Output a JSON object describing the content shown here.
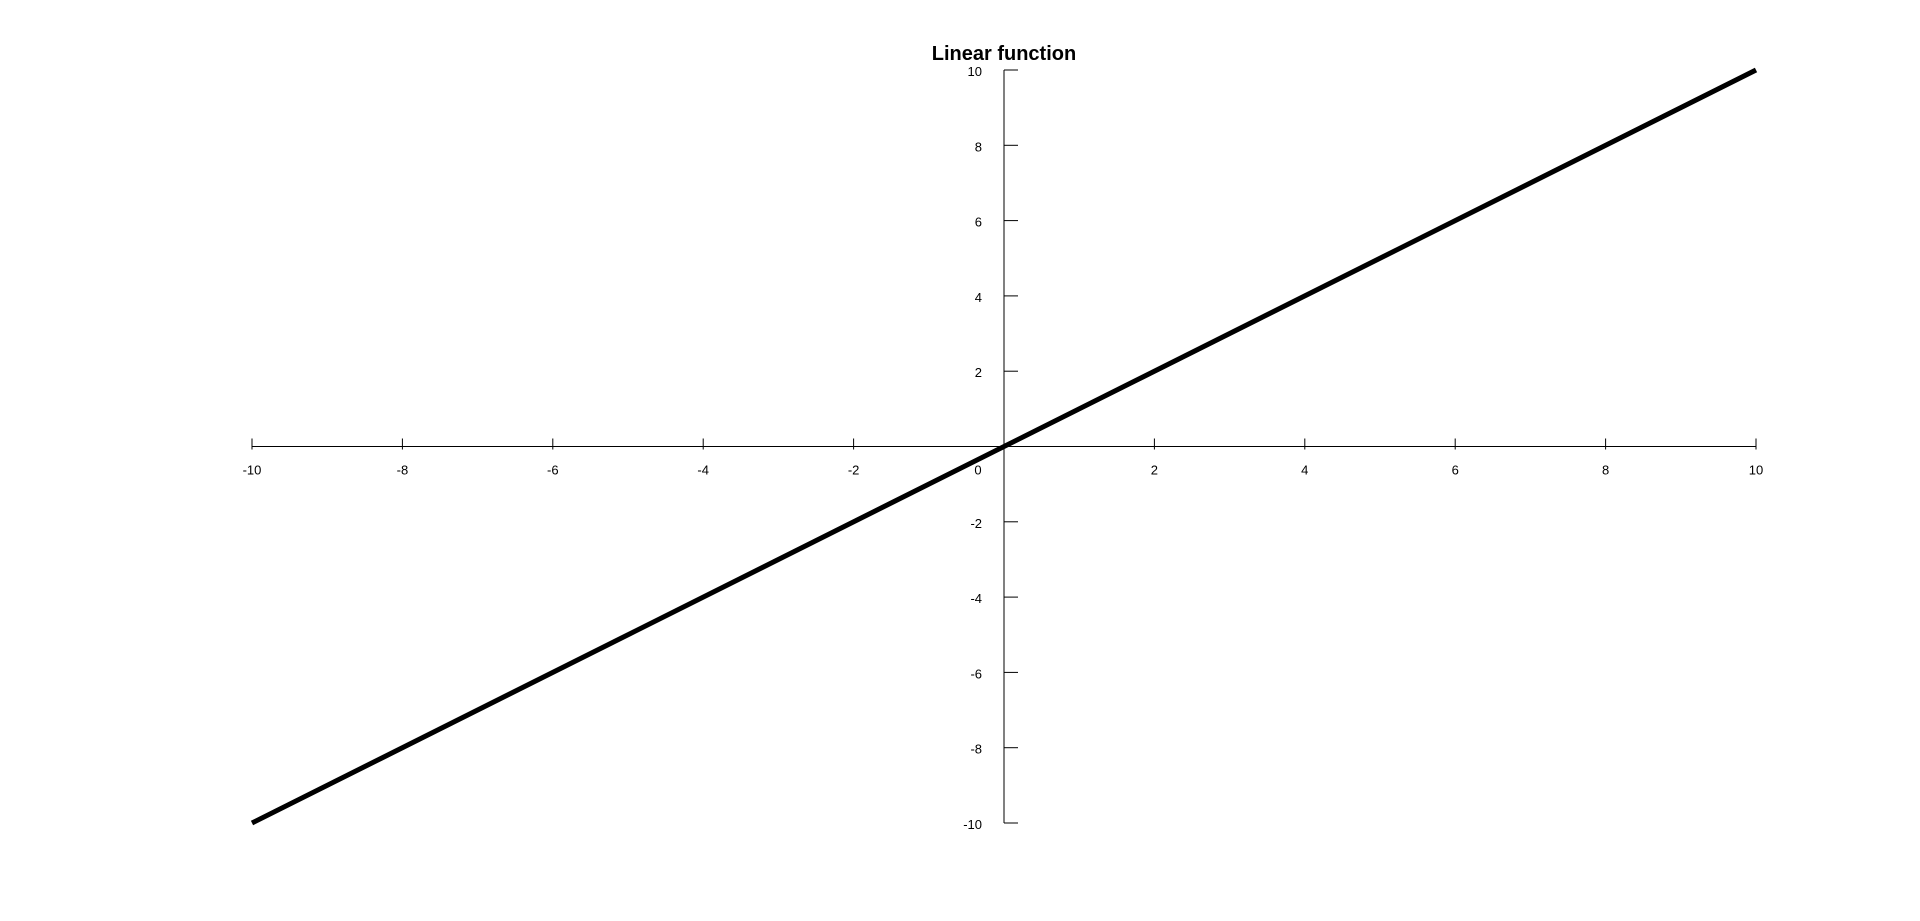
{
  "chart_data": {
    "type": "line",
    "title": "Linear function",
    "xlabel": "",
    "ylabel": "",
    "xlim": [
      -10,
      10
    ],
    "ylim": [
      -10,
      10
    ],
    "grid": false,
    "legend": "none",
    "x_ticks": [
      -10,
      -8,
      -6,
      -4,
      -2,
      0,
      2,
      4,
      6,
      8,
      10
    ],
    "y_ticks": [
      10,
      8,
      6,
      4,
      2,
      -2,
      -4,
      -6,
      -8,
      -10
    ],
    "x_tick_labels": [
      "-10",
      "-8",
      "-6",
      "-4",
      "-2",
      "0",
      "2",
      "4",
      "6",
      "8",
      "10"
    ],
    "y_tick_labels": [
      "10",
      "8",
      "6",
      "4",
      "2",
      "-2",
      "-4",
      "-6",
      "-8",
      "-10"
    ],
    "series": [
      {
        "x": [
          -10,
          10
        ],
        "y": [
          -10,
          10
        ],
        "color": "#000000"
      }
    ]
  }
}
